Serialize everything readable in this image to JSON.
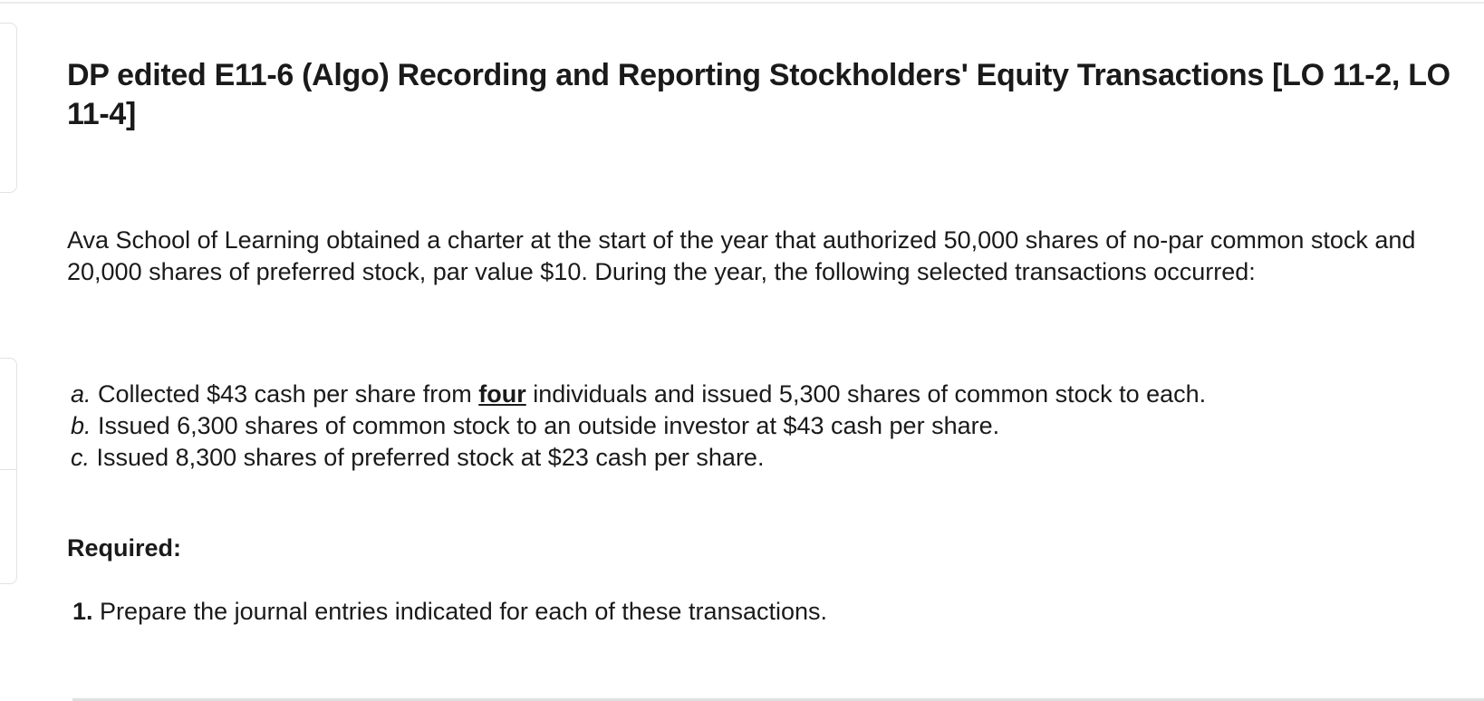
{
  "title": "DP edited E11-6 (Algo) Recording and Reporting Stockholders' Equity Transactions [LO 11-2, LO 11-4]",
  "intro": "Ava School of Learning obtained a charter at the start of the year that authorized 50,000 shares of no-par common stock and 20,000 shares of preferred stock, par value $10. During the year, the following selected transactions occurred:",
  "transactions": [
    {
      "letter": "a.",
      "before": "Collected $43 cash per share from ",
      "emphasis": "four",
      "after": " individuals and issued 5,300 shares of common stock to each."
    },
    {
      "letter": "b.",
      "text": "Issued 6,300 shares of common stock to an outside investor at $43 cash per share."
    },
    {
      "letter": "c.",
      "text": "Issued 8,300 shares of preferred stock at $23 cash per share."
    }
  ],
  "required_label": "Required:",
  "requirement": {
    "number": "1.",
    "text": "Prepare the journal entries indicated for each of these transactions."
  }
}
